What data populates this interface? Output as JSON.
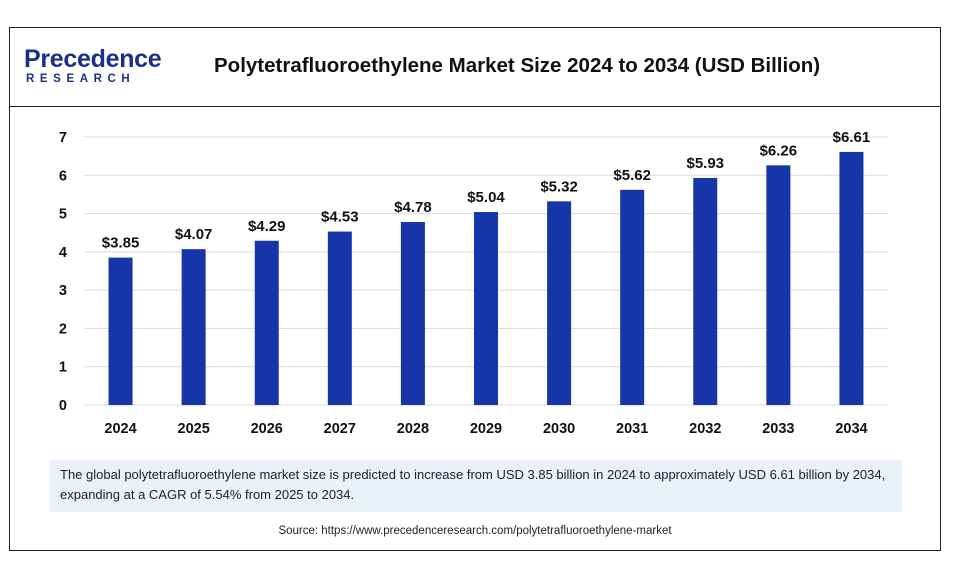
{
  "brand": {
    "logo_main": "recedence",
    "logo_initial": "P",
    "logo_sub": "RESEARCH"
  },
  "header": {
    "title": "Polytetrafluoroethylene Market Size 2024 to 2034 (USD Billion)"
  },
  "colors": {
    "bar": "#1535a8",
    "grid": "#d9d9d9",
    "caption_bg": "#eaf1fb"
  },
  "chart_data": {
    "type": "bar",
    "title": "Polytetrafluoroethylene Market Size 2024 to 2034 (USD Billion)",
    "categories": [
      "2024",
      "2025",
      "2026",
      "2027",
      "2028",
      "2029",
      "2030",
      "2031",
      "2032",
      "2033",
      "2034"
    ],
    "values": [
      3.85,
      4.07,
      4.29,
      4.53,
      4.78,
      5.04,
      5.32,
      5.62,
      5.93,
      6.26,
      6.61
    ],
    "data_labels": [
      "$3.85",
      "$4.07",
      "$4.29",
      "$4.53",
      "$4.78",
      "$5.04",
      "$5.32",
      "$5.62",
      "$5.93",
      "$6.26",
      "$6.61"
    ],
    "yticks": [
      "0",
      "1",
      "2",
      "3",
      "4",
      "5",
      "6",
      "7"
    ],
    "ylim": [
      0,
      7
    ],
    "grid": true,
    "legend": "none",
    "xlabel": "",
    "ylabel": ""
  },
  "caption": "The global polytetrafluoroethylene market size is predicted to increase from USD 3.85 billion in 2024 to approximately USD 6.61 billion by 2034, expanding at a CAGR of 5.54% from 2025 to 2034.",
  "source": "Source: https://www.precedenceresearch.com/polytetrafluoroethylene-market"
}
